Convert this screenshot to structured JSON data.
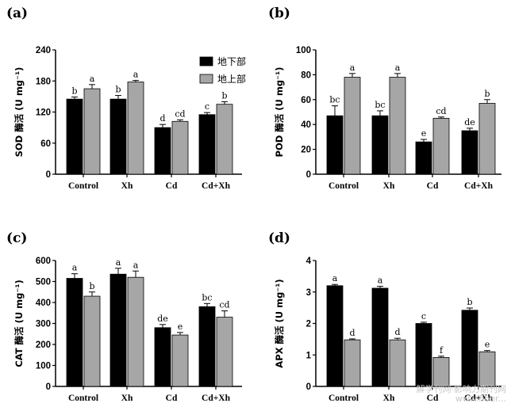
{
  "legend": {
    "below": "地下部",
    "above": "地上部"
  },
  "colors": {
    "below": "#000000",
    "above": "#a6a6a6",
    "axis": "#000000"
  },
  "watermark": {
    "line1": "解学刊网·影响力期刊网",
    "line2": "www.fiber..."
  },
  "chart_data": [
    {
      "type": "bar",
      "panel_label": "(a)",
      "ylabel": "SOD 酶活 (U mg⁻¹)",
      "ylim": [
        0,
        240
      ],
      "yticks": [
        0,
        60,
        120,
        180,
        240
      ],
      "categories": [
        "Control",
        "Xh",
        "Cd",
        "Cd+Xh"
      ],
      "legend": true,
      "series": [
        {
          "name": "地下部",
          "values": [
            145,
            145,
            90,
            115
          ],
          "errors": [
            4,
            7,
            6,
            4
          ],
          "letters": [
            "b",
            "b",
            "d",
            "c"
          ]
        },
        {
          "name": "地上部",
          "values": [
            165,
            178,
            102,
            135
          ],
          "errors": [
            8,
            3,
            3,
            5
          ],
          "letters": [
            "a",
            "a",
            "cd",
            "b"
          ]
        }
      ]
    },
    {
      "type": "bar",
      "panel_label": "(b)",
      "ylabel": "POD 酶活 (U mg⁻¹)",
      "ylim": [
        0,
        100
      ],
      "yticks": [
        0,
        20,
        40,
        60,
        80,
        100
      ],
      "categories": [
        "Control",
        "Xh",
        "Cd",
        "Cd+Xh"
      ],
      "legend": false,
      "series": [
        {
          "name": "地下部",
          "values": [
            47,
            47,
            26,
            35
          ],
          "errors": [
            8,
            4,
            2,
            2
          ],
          "letters": [
            "bc",
            "bc",
            "e",
            "de"
          ]
        },
        {
          "name": "地上部",
          "values": [
            78,
            78,
            45,
            57
          ],
          "errors": [
            3,
            3,
            1,
            3
          ],
          "letters": [
            "a",
            "a",
            "cd",
            "b"
          ]
        }
      ]
    },
    {
      "type": "bar",
      "panel_label": "(c)",
      "ylabel": "CAT 酶活 (U mg⁻¹)",
      "ylim": [
        0,
        600
      ],
      "yticks": [
        0,
        100,
        200,
        300,
        400,
        500,
        600
      ],
      "categories": [
        "Control",
        "Xh",
        "Cd",
        "Cd+Xh"
      ],
      "legend": false,
      "series": [
        {
          "name": "地下部",
          "values": [
            515,
            535,
            280,
            380
          ],
          "errors": [
            22,
            28,
            15,
            15
          ],
          "letters": [
            "a",
            "a",
            "de",
            "bc"
          ]
        },
        {
          "name": "地上部",
          "values": [
            430,
            520,
            245,
            330
          ],
          "errors": [
            20,
            30,
            12,
            30
          ],
          "letters": [
            "b",
            "a",
            "e",
            "cd"
          ]
        }
      ]
    },
    {
      "type": "bar",
      "panel_label": "(d)",
      "ylabel": "APX 酶活 (U mg⁻¹)",
      "ylim": [
        0,
        4
      ],
      "yticks": [
        0,
        1,
        2,
        3,
        4
      ],
      "categories": [
        "Control",
        "Xh",
        "Cd",
        "Cd+Xh"
      ],
      "legend": false,
      "series": [
        {
          "name": "地下部",
          "values": [
            3.2,
            3.12,
            2.0,
            2.42
          ],
          "errors": [
            0.04,
            0.06,
            0.04,
            0.07
          ],
          "letters": [
            "a",
            "a",
            "c",
            "b"
          ]
        },
        {
          "name": "地上部",
          "values": [
            1.48,
            1.48,
            0.92,
            1.1
          ],
          "errors": [
            0.03,
            0.05,
            0.04,
            0.04
          ],
          "letters": [
            "d",
            "d",
            "f",
            "e"
          ]
        }
      ]
    }
  ]
}
